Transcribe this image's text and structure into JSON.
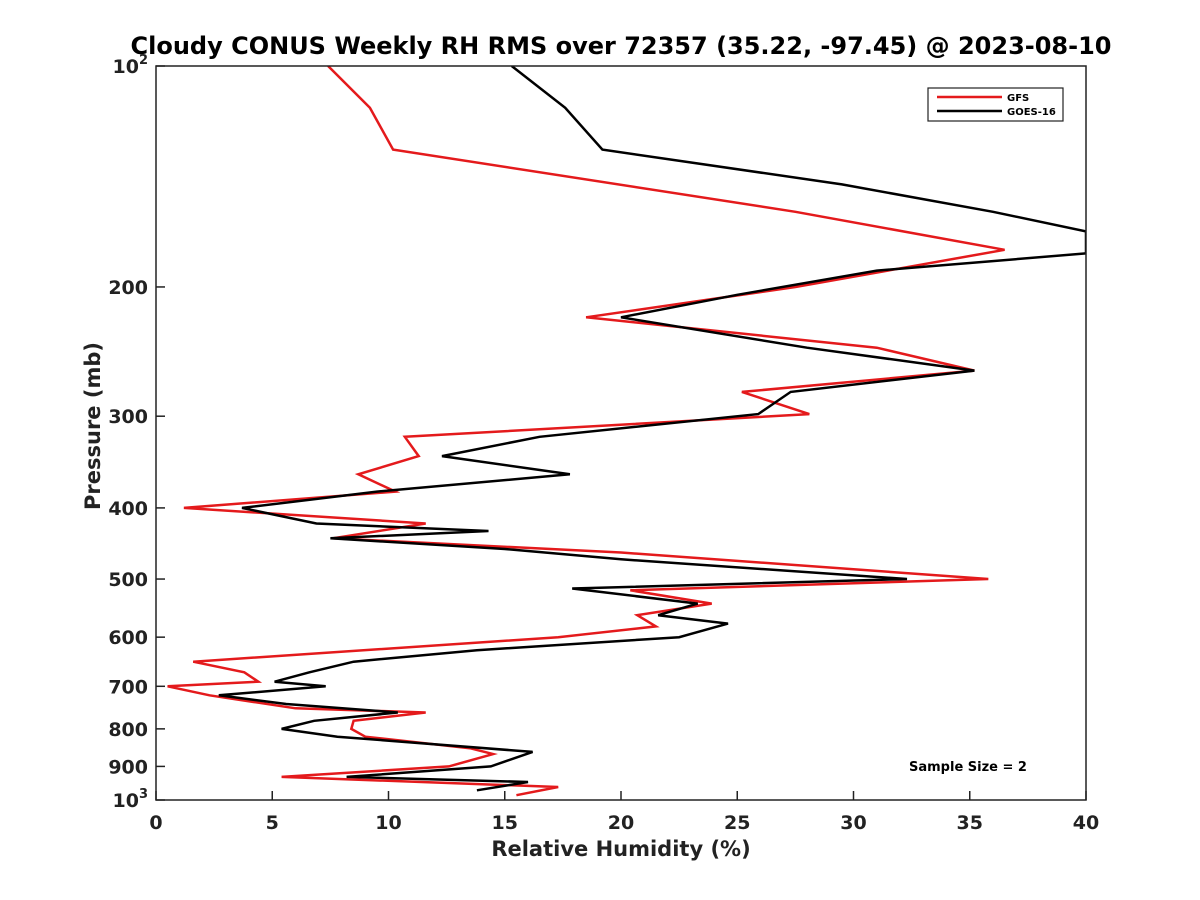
{
  "chart_data": {
    "type": "line",
    "title": "Cloudy CONUS Weekly RH RMS over 72357 (35.22, -97.45) @ 2023-08-10",
    "xlabel": "Relative Humidity (%)",
    "ylabel": "Pressure (mb)",
    "xlim": [
      0,
      40
    ],
    "ylim": [
      100,
      1000
    ],
    "y_scale": "log",
    "y_reversed": true,
    "x_ticks": [
      0,
      5,
      10,
      15,
      20,
      25,
      30,
      35,
      40
    ],
    "y_ticks": [
      {
        "value": 100,
        "base": "10",
        "exp": "2"
      },
      {
        "value": 200,
        "label": "200"
      },
      {
        "value": 300,
        "label": "300"
      },
      {
        "value": 400,
        "label": "400"
      },
      {
        "value": 500,
        "label": "500"
      },
      {
        "value": 600,
        "label": "600"
      },
      {
        "value": 700,
        "label": "700"
      },
      {
        "value": 800,
        "label": "800"
      },
      {
        "value": 900,
        "label": "900"
      },
      {
        "value": 1000,
        "base": "10",
        "exp": "3"
      }
    ],
    "grid": false,
    "legend_position": "top-right",
    "annotation": "Sample Size = 2",
    "series": [
      {
        "name": "GFS",
        "color": "#e41a1c",
        "x": [
          7.4,
          9.2,
          10.2,
          27.5,
          36.5,
          27.5,
          18.5,
          31.0,
          35.2,
          25.2,
          28.1,
          10.7,
          11.3,
          8.7,
          10.3,
          1.2,
          11.6,
          7.6,
          20.0,
          35.8,
          20.4,
          23.9,
          20.7,
          21.5,
          17.3,
          1.6,
          3.8,
          4.4,
          0.5,
          2.3,
          6.0,
          11.6,
          8.5,
          8.4,
          9.0,
          13.5,
          14.5,
          12.6,
          5.4,
          17.3,
          15.5
        ],
        "y": [
          100,
          114,
          130,
          158,
          178,
          200,
          220,
          242,
          260,
          278,
          298,
          320,
          340,
          360,
          380,
          400,
          420,
          440,
          460,
          500,
          518,
          540,
          560,
          580,
          600,
          648,
          670,
          690,
          700,
          720,
          750,
          760,
          780,
          800,
          820,
          850,
          866,
          900,
          930,
          960,
          985
        ]
      },
      {
        "name": "GOES-16",
        "color": "#000000",
        "x": [
          15.3,
          17.6,
          19.2,
          29.5,
          36.0,
          40.0,
          40.0,
          31.0,
          25.0,
          20.0,
          28.0,
          35.2,
          27.3,
          25.9,
          16.5,
          12.3,
          17.8,
          9.5,
          3.7,
          6.9,
          14.3,
          7.5,
          15.0,
          20.0,
          32.3,
          17.9,
          23.3,
          21.6,
          24.6,
          22.5,
          13.8,
          8.5,
          6.6,
          5.1,
          7.3,
          2.7,
          5.6,
          10.4,
          6.8,
          5.4,
          7.8,
          16.2,
          14.4,
          8.2,
          16.0,
          13.8
        ],
        "y": [
          100,
          114,
          130,
          145,
          158,
          168,
          180,
          190,
          205,
          220,
          242,
          260,
          278,
          298,
          320,
          340,
          360,
          380,
          400,
          420,
          430,
          440,
          455,
          470,
          500,
          515,
          540,
          560,
          575,
          600,
          625,
          648,
          670,
          690,
          700,
          720,
          740,
          760,
          780,
          800,
          820,
          860,
          900,
          930,
          945,
          970
        ]
      }
    ]
  }
}
